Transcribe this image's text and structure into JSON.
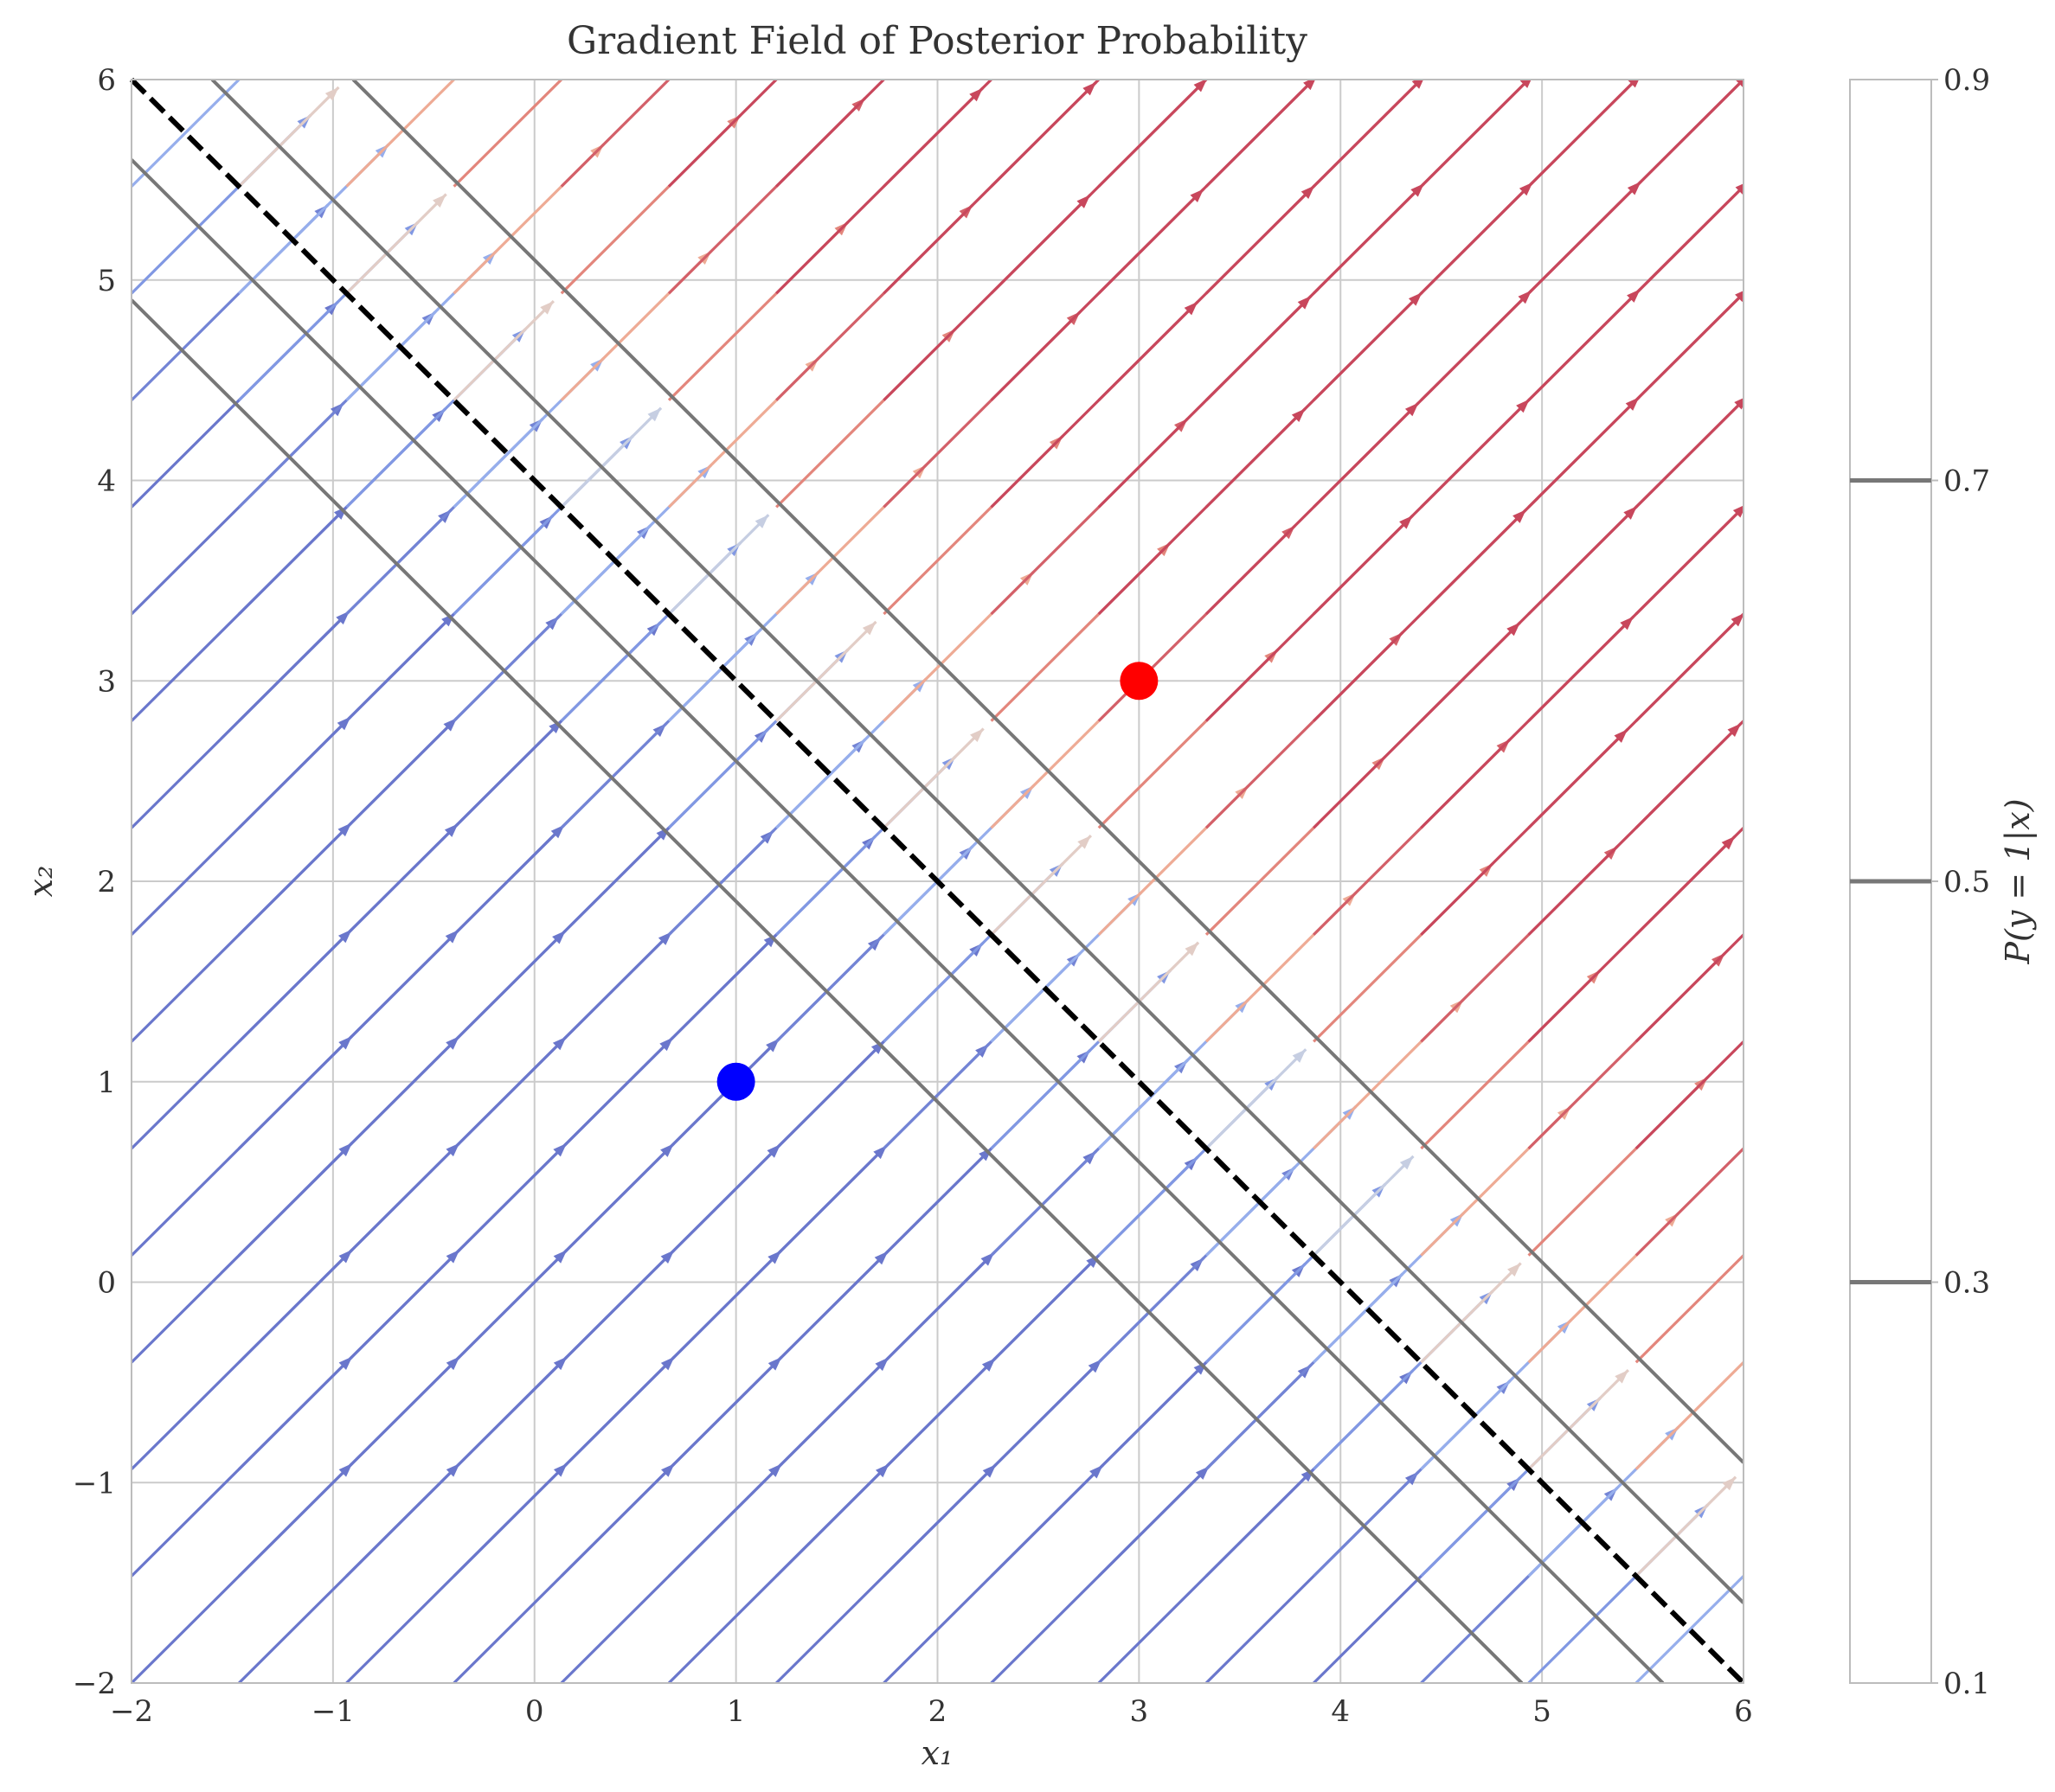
{
  "chart_data": {
    "type": "quiver",
    "title": "Gradient Field of Posterior Probability",
    "xlabel": "x₁",
    "ylabel": "x₂",
    "xlim": [
      -2,
      6
    ],
    "ylim": [
      -2,
      6
    ],
    "xticks": [
      -2,
      -1,
      0,
      1,
      2,
      3,
      4,
      5,
      6
    ],
    "yticks": [
      -2,
      -1,
      0,
      1,
      2,
      3,
      4,
      5,
      6
    ],
    "xtick_labels": [
      "−2",
      "−1",
      "0",
      "1",
      "2",
      "3",
      "4",
      "5",
      "6"
    ],
    "ytick_labels": [
      "−2",
      "−1",
      "0",
      "1",
      "2",
      "3",
      "4",
      "5",
      "6"
    ],
    "grid": true,
    "field": {
      "grid_x_start": -2,
      "grid_x_end": 6,
      "grid_x_count": 16,
      "grid_y_start": -2,
      "grid_y_end": 6,
      "grid_y_count": 16,
      "direction": [
        1,
        1
      ],
      "colormap": "coolwarm",
      "low_color": "#6a77cc",
      "high_color": "#c8475c"
    },
    "decision_boundary": {
      "points": [
        [
          -2,
          6
        ],
        [
          6,
          -2
        ]
      ],
      "style": "dashed",
      "color": "#000000"
    },
    "probability_contours": [
      {
        "points": [
          [
            -2,
            4.9
          ],
          [
            4.9,
            -2
          ]
        ]
      },
      {
        "points": [
          [
            -2,
            5.6
          ],
          [
            5.6,
            -2
          ]
        ]
      },
      {
        "points": [
          [
            -0.9,
            6
          ],
          [
            6,
            -0.9
          ]
        ]
      },
      {
        "points": [
          [
            -1.6,
            6
          ],
          [
            6,
            -1.6
          ]
        ]
      }
    ],
    "contour_color": "#777777",
    "class_means": [
      {
        "x": 1,
        "y": 1,
        "color": "#0000ff"
      },
      {
        "x": 3,
        "y": 3,
        "color": "#ff0000"
      }
    ],
    "colorbar": {
      "label": "P(y = 1|x)",
      "ticks": [
        0.1,
        0.3,
        0.5,
        0.7,
        0.9
      ],
      "tick_labels": [
        "0.1",
        "0.3",
        "0.5",
        "0.7",
        "0.9"
      ],
      "contour_levels": [
        0.3,
        0.5,
        0.7
      ]
    }
  }
}
